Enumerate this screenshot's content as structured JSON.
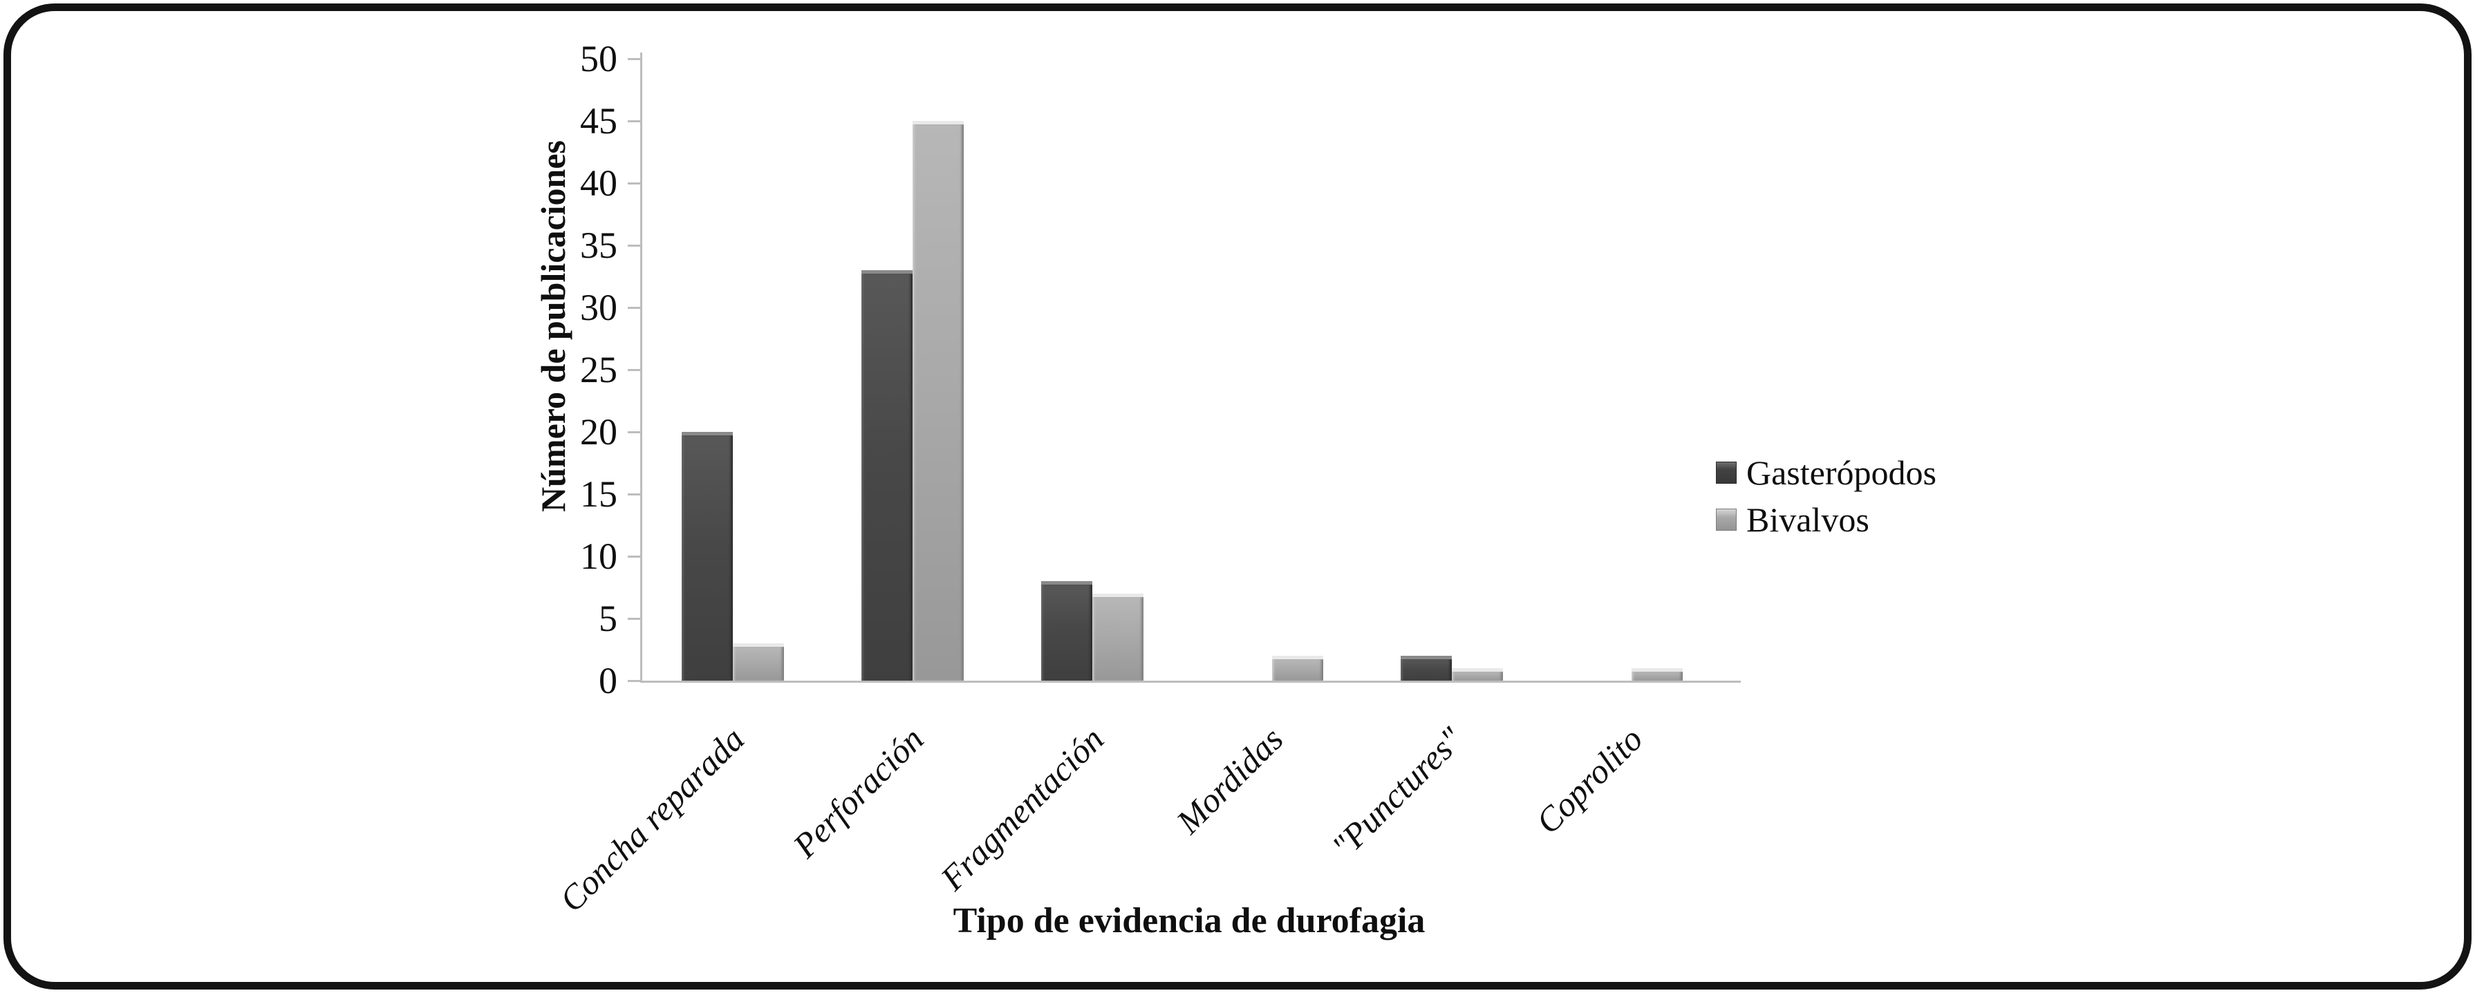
{
  "chart_data": {
    "type": "bar",
    "title": "",
    "categories": [
      "Concha reparada",
      "Perforación",
      "Fragmentación",
      "Mordidas",
      "\"Punctures\"",
      "Coprolito"
    ],
    "series": [
      {
        "name": "Gasterópodos",
        "key": "gasteropodos",
        "values": [
          20,
          33,
          8,
          0,
          2,
          0
        ],
        "color": "#484848"
      },
      {
        "name": "Bivalvos",
        "key": "bivalvos",
        "values": [
          3,
          45,
          7,
          2,
          1,
          1
        ],
        "color": "#a8a8a8"
      }
    ],
    "xlabel": "Tipo de evidencia de durofagia",
    "ylabel": "Número de publicaciones",
    "ylim": [
      0,
      50
    ],
    "ytick_step": 5,
    "ytick_labels": [
      "0",
      "5",
      "10",
      "15",
      "20",
      "25",
      "30",
      "35",
      "40",
      "45",
      "50"
    ],
    "grid": false,
    "legend_position": "right",
    "axis_color": "#bdbdbd",
    "text_color": "#0f0f0f",
    "background_color": "#ffffff",
    "frame_border_color": "#131313"
  }
}
